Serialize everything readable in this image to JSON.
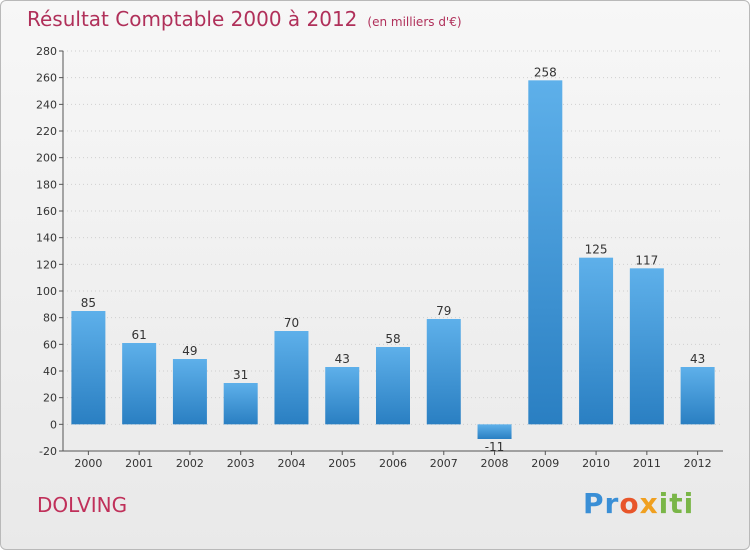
{
  "page": {
    "title": "Résultat Comptable 2000 à 2012",
    "subtitle": "(en milliers d'€)",
    "place": "DOLVING",
    "logo": {
      "parts": [
        "Pr",
        "o",
        "x",
        "iti"
      ]
    }
  },
  "colors": {
    "bar_light": "#5eb0ea",
    "bar_dark": "#2a7fc2",
    "grid": "#cfcfcf",
    "title": "#b0305a"
  },
  "chart_data": {
    "type": "bar",
    "title": "Résultat Comptable 2000 à 2012",
    "subtitle": "(en milliers d'€)",
    "xlabel": "",
    "ylabel": "",
    "categories": [
      "2000",
      "2001",
      "2002",
      "2003",
      "2004",
      "2005",
      "2006",
      "2007",
      "2008",
      "2009",
      "2010",
      "2011",
      "2012"
    ],
    "values": [
      85,
      61,
      49,
      31,
      70,
      43,
      58,
      79,
      -11,
      258,
      125,
      117,
      43
    ],
    "data_labels": [
      "85",
      "61",
      "49",
      "31",
      "70",
      "43",
      "58",
      "79",
      "-11",
      "258",
      "125",
      "117",
      "43"
    ],
    "ylim": [
      -20,
      280
    ],
    "yticks": [
      -20,
      0,
      20,
      40,
      60,
      80,
      100,
      120,
      140,
      160,
      180,
      200,
      220,
      240,
      260,
      280
    ],
    "grid": true,
    "legend": "none"
  }
}
